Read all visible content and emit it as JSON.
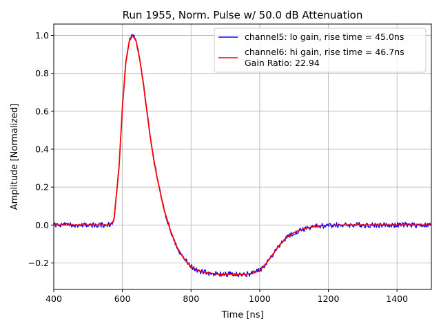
{
  "chart_data": {
    "type": "line",
    "title": "Run 1955, Norm. Pulse w/ 50.0 dB Attenuation",
    "xlabel": "Time [ns]",
    "ylabel": "Amplitude [Normalized]",
    "xlim": [
      400,
      1500
    ],
    "ylim": [
      -0.34,
      1.06
    ],
    "xticks": [
      400,
      600,
      800,
      1000,
      1200,
      1400
    ],
    "xtick_labels": [
      "400",
      "600",
      "800",
      "1000",
      "1200",
      "1400"
    ],
    "yticks": [
      -0.2,
      0.0,
      0.2,
      0.4,
      0.6,
      0.8,
      1.0
    ],
    "ytick_labels": [
      "−0.2",
      "0.0",
      "0.2",
      "0.4",
      "0.6",
      "0.8",
      "1.0"
    ],
    "grid": true,
    "legend_position": "top-right",
    "legend_extra_text": "Gain Ratio: 22.94",
    "series": [
      {
        "name": "channel5: lo gain, rise time = 45.0ns",
        "color": "#0000ff",
        "noisy": true,
        "x": [
          400,
          560,
          575,
          590,
          600,
          610,
          620,
          630,
          640,
          650,
          660,
          670,
          680,
          690,
          700,
          720,
          740,
          760,
          780,
          800,
          820,
          840,
          860,
          880,
          900,
          920,
          940,
          960,
          980,
          1000,
          1020,
          1040,
          1060,
          1080,
          1100,
          1120,
          1140,
          1160,
          1180,
          1200,
          1250,
          1300,
          1350,
          1400,
          1450,
          1500
        ],
        "y": [
          0.0,
          0.0,
          0.02,
          0.3,
          0.62,
          0.86,
          0.97,
          1.0,
          0.97,
          0.88,
          0.76,
          0.62,
          0.48,
          0.36,
          0.26,
          0.09,
          -0.03,
          -0.12,
          -0.18,
          -0.22,
          -0.24,
          -0.25,
          -0.255,
          -0.26,
          -0.26,
          -0.26,
          -0.26,
          -0.26,
          -0.255,
          -0.24,
          -0.2,
          -0.15,
          -0.1,
          -0.065,
          -0.04,
          -0.025,
          -0.015,
          -0.008,
          -0.004,
          -0.002,
          0.0,
          0.0,
          0.0,
          0.0,
          0.0,
          0.0
        ]
      },
      {
        "name": "channel6: hi gain, rise time = 46.7ns",
        "color": "#ff0000",
        "noisy": false,
        "x": [
          400,
          560,
          575,
          590,
          600,
          610,
          620,
          630,
          640,
          650,
          660,
          670,
          680,
          690,
          700,
          720,
          740,
          760,
          780,
          800,
          820,
          840,
          860,
          880,
          900,
          920,
          940,
          960,
          980,
          1000,
          1020,
          1040,
          1060,
          1080,
          1100,
          1120,
          1140,
          1160,
          1180,
          1200,
          1250,
          1300,
          1350,
          1400,
          1450,
          1500
        ],
        "y": [
          0.0,
          0.0,
          0.02,
          0.3,
          0.62,
          0.86,
          0.97,
          1.0,
          0.97,
          0.88,
          0.76,
          0.62,
          0.48,
          0.36,
          0.26,
          0.09,
          -0.03,
          -0.12,
          -0.18,
          -0.22,
          -0.24,
          -0.25,
          -0.255,
          -0.26,
          -0.26,
          -0.26,
          -0.26,
          -0.26,
          -0.255,
          -0.24,
          -0.2,
          -0.15,
          -0.1,
          -0.065,
          -0.04,
          -0.025,
          -0.015,
          -0.008,
          -0.004,
          -0.002,
          0.0,
          0.0,
          0.0,
          0.0,
          0.0,
          0.0
        ]
      }
    ]
  }
}
